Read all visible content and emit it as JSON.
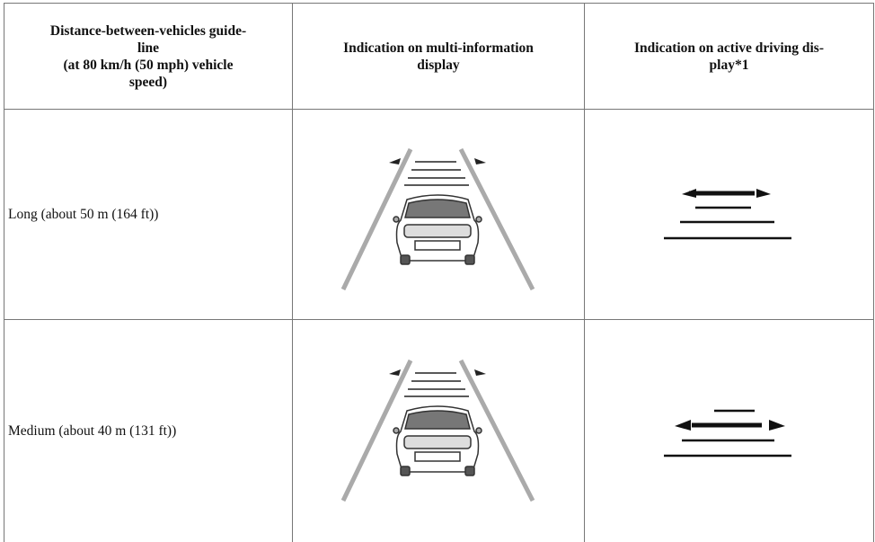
{
  "table": {
    "header": [
      [
        "Distance-between-vehicles guide-",
        "line",
        "(at 80 km/h (50 mph) vehicle",
        "speed)"
      ],
      [
        "Indication on multi-information",
        "display"
      ],
      [
        "Indication on active driving dis-",
        "play*1"
      ]
    ],
    "rows": [
      [
        "Long (about 50 m (164 ft))"
      ],
      [
        "Medium (about 40 m (131 ft))"
      ]
    ]
  }
}
